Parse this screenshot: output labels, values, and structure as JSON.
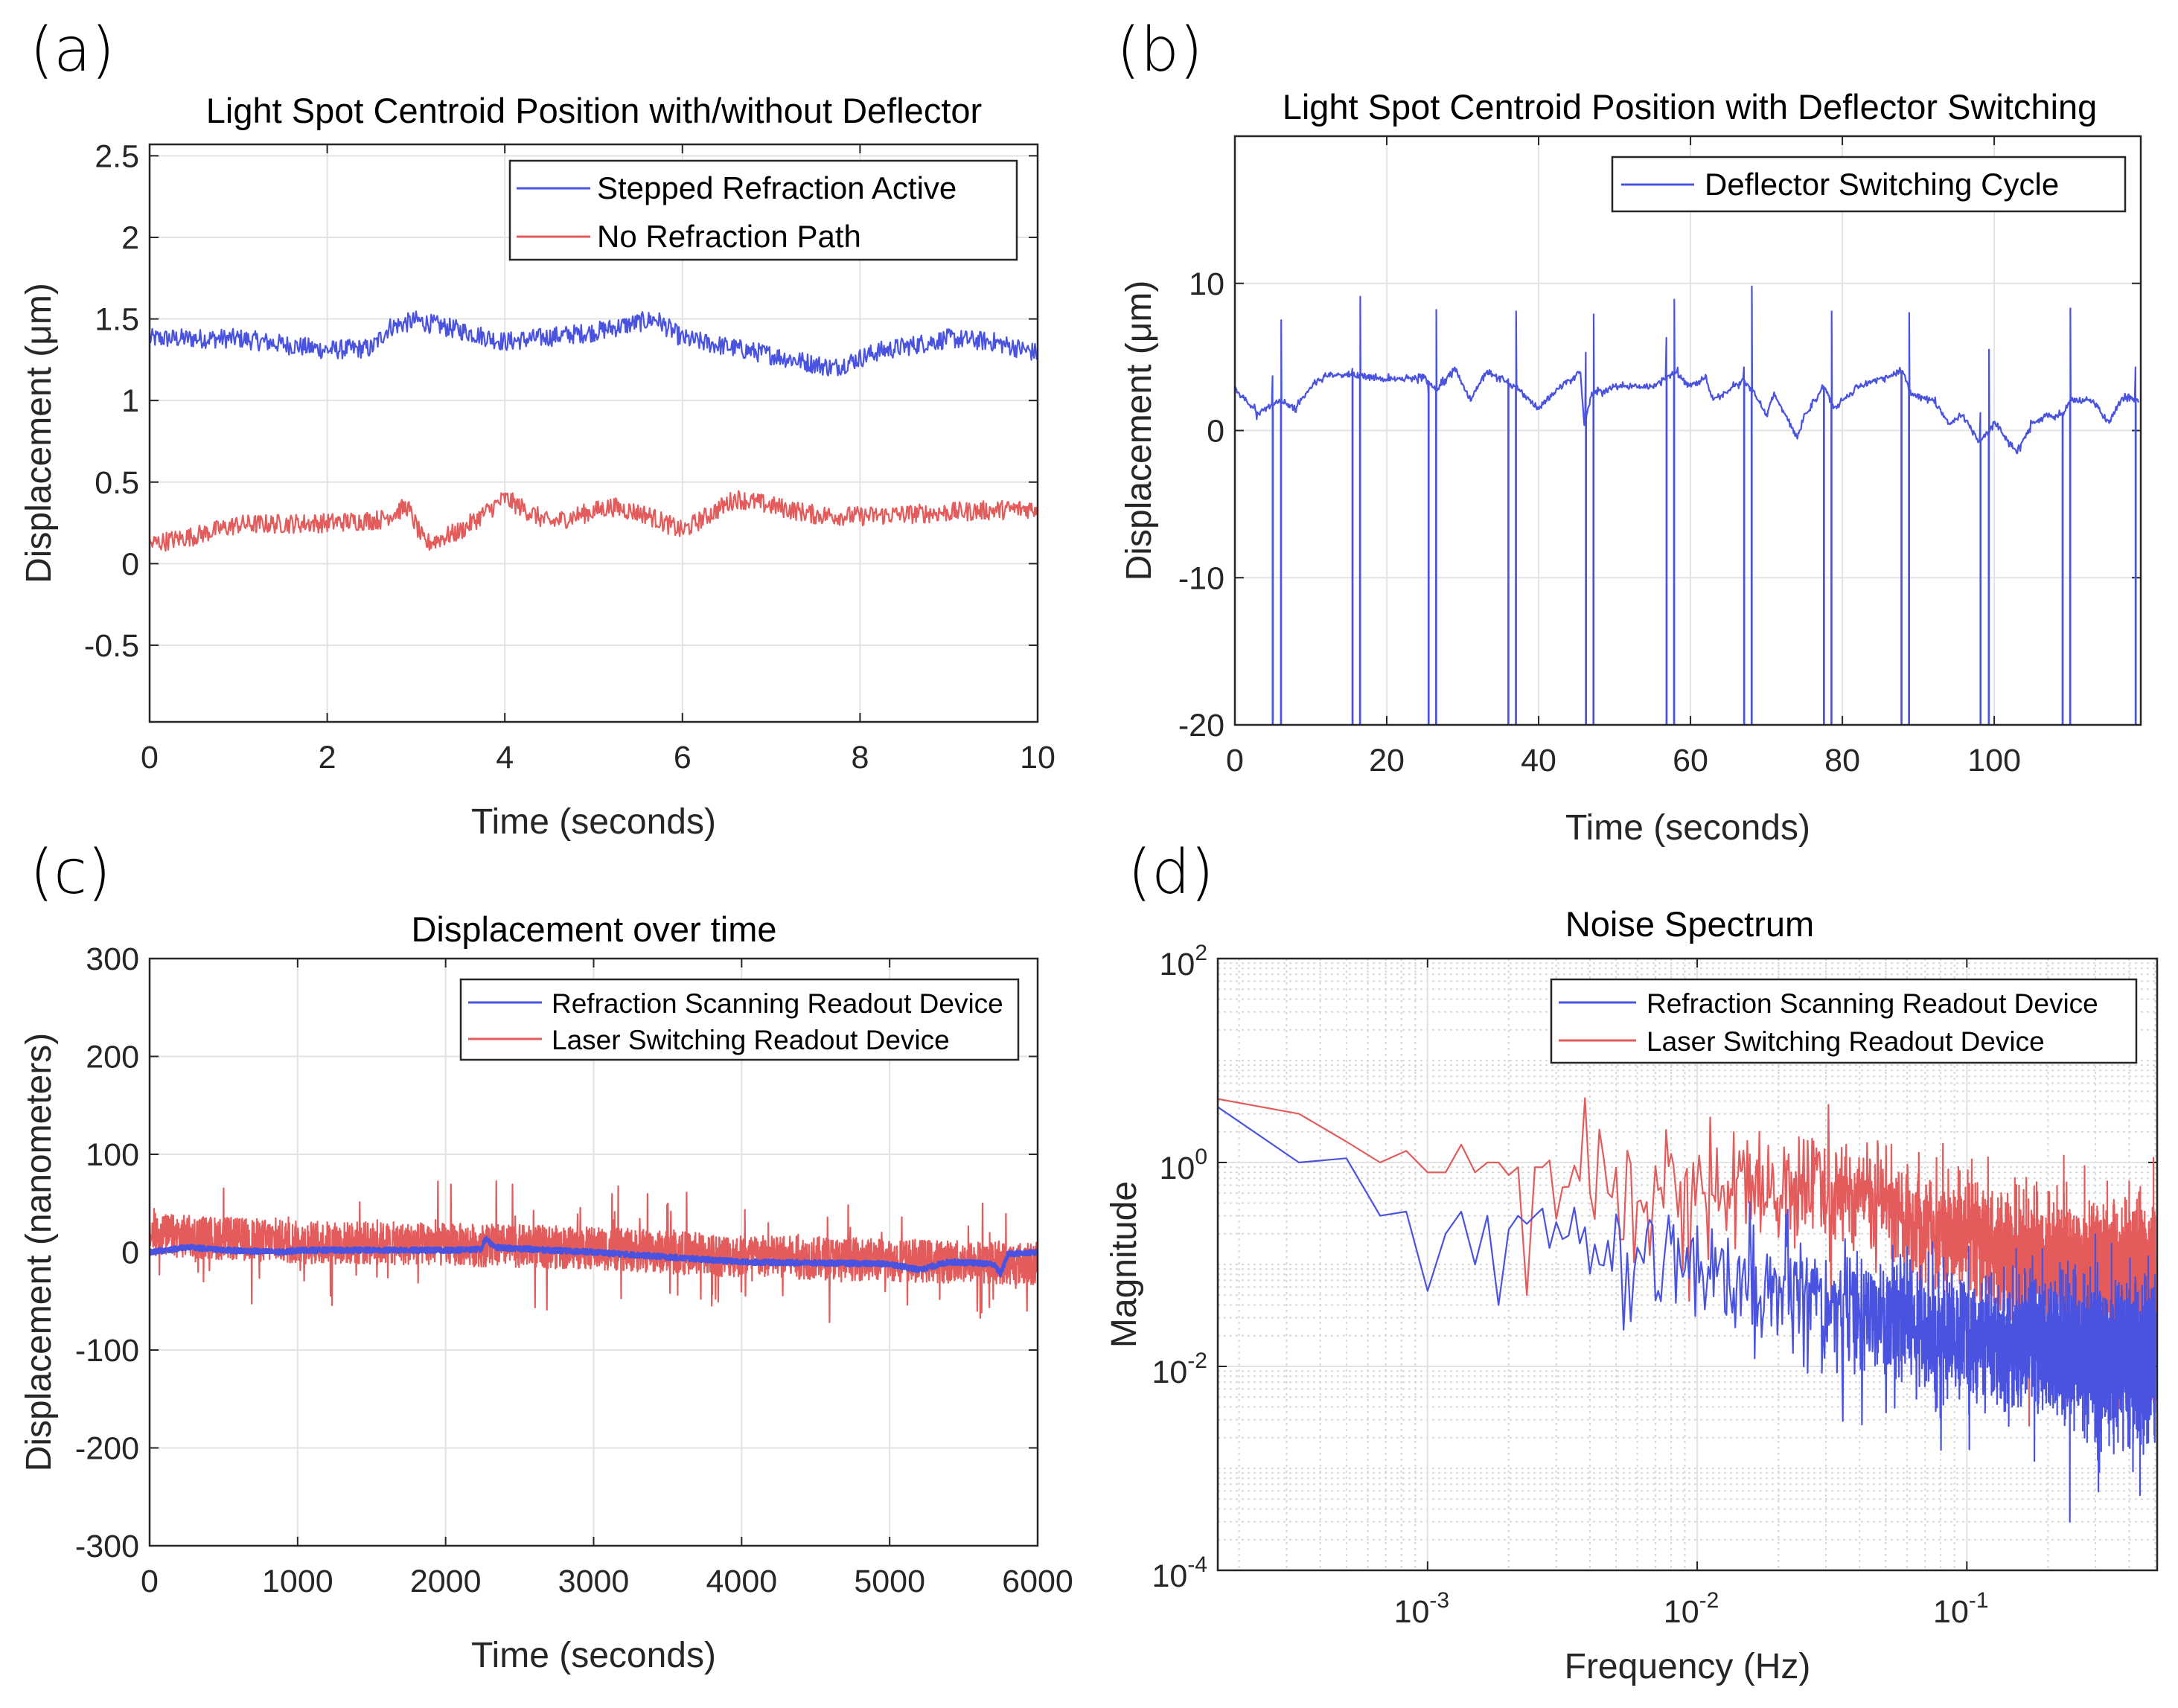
{
  "colors": {
    "blue": "#4a53e0",
    "red": "#e35b5b",
    "grid": "#e3e3e3",
    "axis": "#262626"
  },
  "chart_data": [
    {
      "panel_label": "(a)",
      "type": "line",
      "title": "Light Spot Centroid Position with/without Deflector",
      "xlabel": "Time (seconds)",
      "ylabel": "Displacement (μm)",
      "xlim": [
        0,
        10
      ],
      "ylim": [
        -0.97,
        2.57
      ],
      "xscale": "linear",
      "yscale": "linear",
      "xticks": [
        0,
        2,
        4,
        6,
        8,
        10
      ],
      "xtick_labels": [
        "0",
        "2",
        "4",
        "6",
        "8",
        "10"
      ],
      "yticks": [
        -0.5,
        0,
        0.5,
        1,
        1.5,
        2,
        2.5
      ],
      "ytick_labels": [
        "-0.5",
        "0",
        "0.5",
        "1",
        "1.5",
        "2",
        "2.5"
      ],
      "grid": true,
      "legend_position": "top-right",
      "series": [
        {
          "name": "Stepped Refraction Active",
          "color": "blue",
          "noise": 0.06,
          "samples": 1000,
          "trend": [
            [
              0,
              1.38
            ],
            [
              1,
              1.38
            ],
            [
              2,
              1.31
            ],
            [
              2.5,
              1.32
            ],
            [
              2.7,
              1.45
            ],
            [
              3,
              1.49
            ],
            [
              3.5,
              1.43
            ],
            [
              4,
              1.36
            ],
            [
              5,
              1.42
            ],
            [
              5.7,
              1.5
            ],
            [
              6,
              1.38
            ],
            [
              7,
              1.28
            ],
            [
              7.7,
              1.2
            ],
            [
              8.2,
              1.3
            ],
            [
              9,
              1.38
            ],
            [
              9.5,
              1.36
            ],
            [
              10,
              1.29
            ]
          ]
        },
        {
          "name": "No Refraction Path",
          "color": "red",
          "noise": 0.06,
          "samples": 1000,
          "trend": [
            [
              0,
              0.12
            ],
            [
              0.5,
              0.17
            ],
            [
              1,
              0.24
            ],
            [
              2,
              0.25
            ],
            [
              2.6,
              0.27
            ],
            [
              2.9,
              0.35
            ],
            [
              3.1,
              0.12
            ],
            [
              3.5,
              0.2
            ],
            [
              4,
              0.4
            ],
            [
              4.5,
              0.25
            ],
            [
              5.2,
              0.35
            ],
            [
              5.6,
              0.3
            ],
            [
              6,
              0.2
            ],
            [
              6.6,
              0.4
            ],
            [
              7.5,
              0.3
            ],
            [
              8,
              0.29
            ],
            [
              10,
              0.34
            ]
          ]
        }
      ]
    },
    {
      "panel_label": "(b)",
      "type": "line",
      "title": "Light Spot Centroid Position with Deflector Switching",
      "xlabel": "Time (seconds)",
      "ylabel": "Displacement (μm)",
      "xlim": [
        0,
        119.3
      ],
      "ylim": [
        -20,
        20
      ],
      "xscale": "linear",
      "yscale": "linear",
      "xticks": [
        0,
        20,
        40,
        60,
        80,
        100
      ],
      "xtick_labels": [
        "0",
        "20",
        "40",
        "60",
        "80",
        "100"
      ],
      "yticks": [
        -20,
        -10,
        0,
        10
      ],
      "ytick_labels": [
        "-20",
        "-10",
        "0",
        "10"
      ],
      "grid": true,
      "legend_position": "top-right",
      "series": [
        {
          "name": "Deflector Switching Cycle",
          "color": "blue",
          "noise": 0.25,
          "samples": 1200,
          "trend": [
            [
              0,
              2.8
            ],
            [
              3,
              1.2
            ],
            [
              5,
              1.8
            ],
            [
              6,
              2
            ],
            [
              8,
              1.5
            ],
            [
              10,
              3
            ],
            [
              12,
              3.7
            ],
            [
              15,
              3.8
            ],
            [
              16.5,
              3.7
            ],
            [
              20,
              3.5
            ],
            [
              25,
              3.6
            ],
            [
              26.5,
              2.8
            ],
            [
              29,
              4.3
            ],
            [
              31,
              2
            ],
            [
              33,
              4
            ],
            [
              36,
              3.2
            ],
            [
              37,
              3
            ],
            [
              40,
              1.5
            ],
            [
              43,
              3
            ],
            [
              45.5,
              4
            ],
            [
              46,
              0.3
            ],
            [
              47,
              2.5
            ],
            [
              50,
              3
            ],
            [
              55,
              3
            ],
            [
              58,
              4
            ],
            [
              60,
              3
            ],
            [
              62,
              3.6
            ],
            [
              63,
              2
            ],
            [
              67,
              3.5
            ],
            [
              69,
              2
            ],
            [
              70,
              1
            ],
            [
              71,
              2.5
            ],
            [
              74,
              -0.5
            ],
            [
              75,
              1
            ],
            [
              77.5,
              3
            ],
            [
              79,
              1.5
            ],
            [
              82,
              3
            ],
            [
              85,
              3.5
            ],
            [
              88,
              4
            ],
            [
              89,
              2.5
            ],
            [
              92,
              2
            ],
            [
              94,
              0.5
            ],
            [
              96,
              1
            ],
            [
              98,
              -0.8
            ],
            [
              100,
              0.5
            ],
            [
              103,
              -1.5
            ],
            [
              105,
              0.5
            ],
            [
              107,
              1
            ],
            [
              109,
              1
            ],
            [
              110,
              2
            ],
            [
              113,
              2
            ],
            [
              115,
              0.5
            ],
            [
              117,
              2.3
            ],
            [
              119,
              2
            ]
          ],
          "switching_events": [
            [
              5,
              6,
              3.7,
              7.5
            ],
            [
              15.5,
              16.5,
              4.2,
              9.1
            ],
            [
              25.5,
              26.5,
              2.5,
              8.2
            ],
            [
              36,
              37,
              3.5,
              8.1
            ],
            [
              46.2,
              47.2,
              5.3,
              7.9
            ],
            [
              56.8,
              57.8,
              6.3,
              8.9
            ],
            [
              67,
              68,
              4.3,
              9.8
            ],
            [
              77.5,
              78.5,
              3,
              8.1
            ],
            [
              87.8,
              88.8,
              3.8,
              8.0
            ],
            [
              98.2,
              99.3,
              1.2,
              5.5
            ],
            [
              109,
              110,
              1,
              8.3
            ],
            [
              118.6,
              119.1,
              4.3,
              4.3
            ]
          ]
        }
      ]
    },
    {
      "panel_label": "(c)",
      "type": "line",
      "title": "Displacement over time",
      "xlabel": "Time (seconds)",
      "ylabel": "Displacement (nanometers)",
      "xlim": [
        0,
        6000
      ],
      "ylim": [
        -300,
        300
      ],
      "xscale": "linear",
      "yscale": "linear",
      "xticks": [
        0,
        1000,
        2000,
        3000,
        4000,
        5000,
        6000
      ],
      "xtick_labels": [
        "0",
        "1000",
        "2000",
        "3000",
        "4000",
        "5000",
        "6000"
      ],
      "yticks": [
        -300,
        -200,
        -100,
        0,
        100,
        200,
        300
      ],
      "ytick_labels": [
        "-300",
        "-200",
        "-100",
        "0",
        "100",
        "200",
        "300"
      ],
      "grid": true,
      "legend_position": "top-right",
      "series": [
        {
          "name": "Laser Switching Readout Device",
          "color": "red",
          "noise": 22,
          "samples": 3000,
          "trend": [
            [
              0,
              18
            ],
            [
              1000,
              10
            ],
            [
              2000,
              8
            ],
            [
              3000,
              4
            ],
            [
              4000,
              -4
            ],
            [
              5000,
              -8
            ],
            [
              6000,
              -12
            ]
          ]
        },
        {
          "name": "Refraction Scanning Readout Device",
          "color": "blue",
          "noise": 2.5,
          "samples": 3000,
          "trend": [
            [
              0,
              0
            ],
            [
              250,
              5
            ],
            [
              500,
              2
            ],
            [
              900,
              0
            ],
            [
              1000,
              2
            ],
            [
              2000,
              2
            ],
            [
              2240,
              3
            ],
            [
              2270,
              14
            ],
            [
              2330,
              5
            ],
            [
              2700,
              2
            ],
            [
              3000,
              0
            ],
            [
              3500,
              -5
            ],
            [
              4000,
              -10
            ],
            [
              5000,
              -12
            ],
            [
              5200,
              -18
            ],
            [
              5400,
              -10
            ],
            [
              5700,
              -12
            ],
            [
              5750,
              -22
            ],
            [
              5800,
              -2
            ],
            [
              6000,
              0
            ]
          ]
        }
      ]
    },
    {
      "panel_label": "(d)",
      "type": "line",
      "title": "Noise Spectrum",
      "xlabel": "Frequency (Hz)",
      "ylabel": "Magnitude",
      "xlim": [
        0.0001667,
        0.508
      ],
      "ylim": [
        0.0001,
        100
      ],
      "xscale": "log",
      "yscale": "log",
      "xticks": [
        0.001,
        0.01,
        0.1
      ],
      "xtick_labels": [
        {
          "base": "10",
          "exp": "-3"
        },
        {
          "base": "10",
          "exp": "-2"
        },
        {
          "base": "10",
          "exp": "-1"
        }
      ],
      "yticks": [
        0.0001,
        0.01,
        1,
        100
      ],
      "ytick_labels": [
        {
          "base": "10",
          "exp": "-4"
        },
        {
          "base": "10",
          "exp": "-2"
        },
        {
          "base": "10",
          "exp": "0"
        },
        {
          "base": "10",
          "exp": "2"
        }
      ],
      "grid": true,
      "minor_grid": true,
      "legend_position": "top-right",
      "series": [
        {
          "name": "Laser Switching Readout Device",
          "color": "red",
          "sigma": 0.28,
          "bins": 3000,
          "df": 0.0001667,
          "leading_values": [
            4.2,
            3.0,
            1.6,
            1.0,
            1.3,
            0.8,
            0.8,
            1.5,
            0.8,
            1.0,
            1.0,
            0.75,
            0.9,
            0.05,
            0.9
          ],
          "trend": [
            [
              0.0025,
              0.75
            ],
            [
              0.01,
              0.6
            ],
            [
              0.04,
              0.55
            ],
            [
              0.07,
              0.25
            ],
            [
              0.15,
              0.12
            ],
            [
              0.5,
              0.07
            ]
          ]
        },
        {
          "name": "Refraction Scanning Readout Device",
          "color": "blue",
          "sigma": 0.3,
          "bins": 3000,
          "df": 0.0001667,
          "leading_values": [
            3.5,
            1.0,
            1.1,
            0.3,
            0.33,
            0.055,
            0.2,
            0.33,
            0.1,
            0.3,
            0.04,
            0.22,
            0.3,
            0.25,
            0.3
          ],
          "trend": [
            [
              0.0025,
              0.2
            ],
            [
              0.008,
              0.15
            ],
            [
              0.015,
              0.07
            ],
            [
              0.03,
              0.04
            ],
            [
              0.1,
              0.02
            ],
            [
              0.5,
              0.012
            ]
          ]
        }
      ]
    }
  ]
}
